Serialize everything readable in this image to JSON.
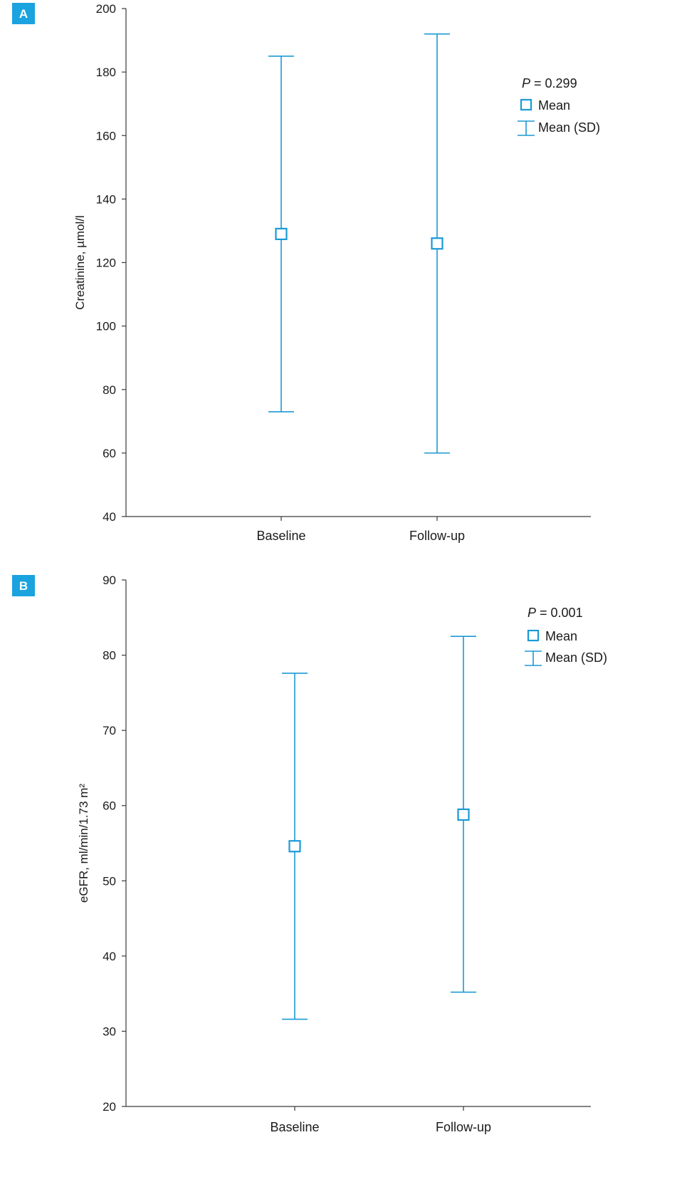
{
  "colors": {
    "accent": "#1a9ad6",
    "axis": "#3a3a3a",
    "text": "#1a1a1a",
    "badge": "#1aa3df"
  },
  "chart_data": [
    {
      "type": "errorbar",
      "panel_label": "A",
      "ylabel": "Creatinine, µmol/l",
      "ylim": [
        40,
        200
      ],
      "yticks": [
        "40",
        "60",
        "80",
        "100",
        "120",
        "140",
        "160",
        "180",
        "200"
      ],
      "categories": [
        "Baseline",
        "Follow-up"
      ],
      "mean": [
        129,
        126
      ],
      "lower": [
        73,
        60
      ],
      "upper": [
        185,
        192
      ],
      "p_label": "P",
      "p_value": "= 0.299",
      "legend": {
        "mean": "Mean",
        "sd": "Mean (SD)"
      }
    },
    {
      "type": "errorbar",
      "panel_label": "B",
      "ylabel": "eGFR, ml/min/1.73 m²",
      "ylim": [
        20,
        90
      ],
      "yticks": [
        "20",
        "30",
        "40",
        "50",
        "60",
        "70",
        "80",
        "90"
      ],
      "categories": [
        "Baseline",
        "Follow-up"
      ],
      "mean": [
        54.6,
        58.8
      ],
      "lower": [
        31.6,
        35.2
      ],
      "upper": [
        77.6,
        82.5
      ],
      "p_label": "P",
      "p_value": "= 0.001",
      "legend": {
        "mean": "Mean",
        "sd": "Mean (SD)"
      }
    }
  ]
}
